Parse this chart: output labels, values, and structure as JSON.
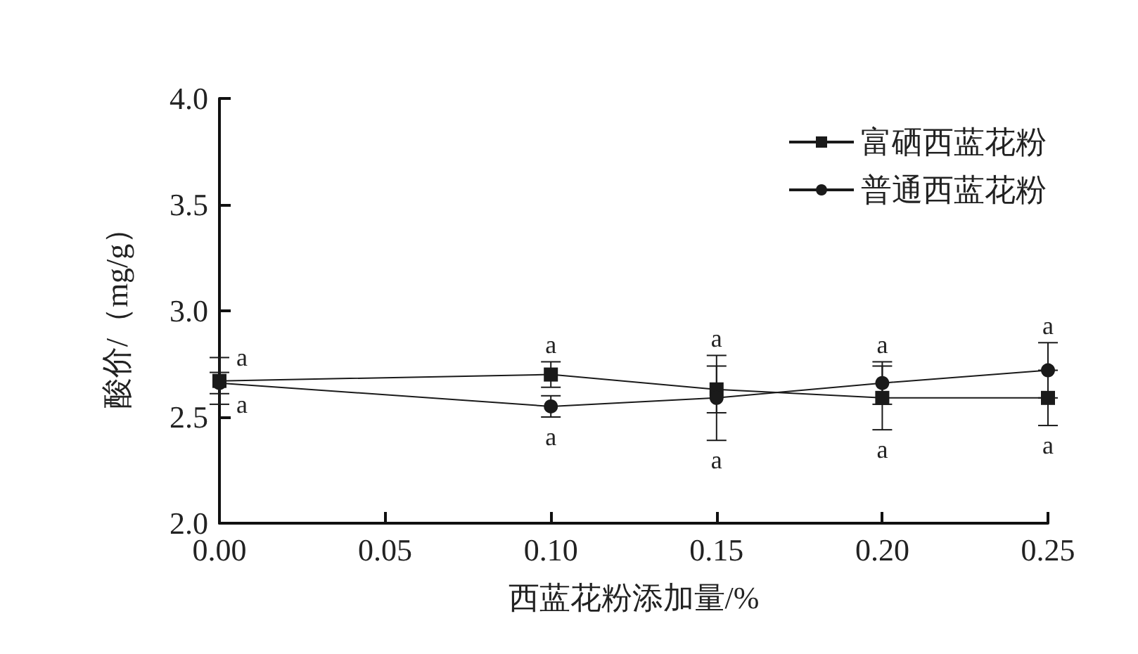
{
  "chart_data": {
    "type": "line",
    "xlabel": "西蓝花粉添加量/%",
    "ylabel": "酸价/（mg/g）",
    "x": [
      0.0,
      0.1,
      0.15,
      0.2,
      0.25
    ],
    "xlim": [
      0.0,
      0.25
    ],
    "xticks": [
      {
        "value": 0,
        "label": "0.00"
      },
      {
        "value": 0.05,
        "label": "0.05"
      },
      {
        "value": 0.1,
        "label": "0.10"
      },
      {
        "value": 0.15,
        "label": "0.15"
      },
      {
        "value": 0.2,
        "label": "0.20"
      },
      {
        "value": 0.25,
        "label": "0.25"
      }
    ],
    "ylim": [
      2.0,
      4.0
    ],
    "yticks": [
      {
        "value": 2,
        "label": "2.0"
      },
      {
        "value": 2.5,
        "label": "2.5"
      },
      {
        "value": 3,
        "label": "3.0"
      },
      {
        "value": 3.5,
        "label": "3.5"
      },
      {
        "value": 4,
        "label": "4.0"
      }
    ],
    "series": [
      {
        "name": "富硒西蓝花粉",
        "color": "#1a1a1a",
        "marker": "square",
        "values": [
          2.67,
          2.7,
          2.63,
          2.59,
          2.59
        ],
        "errors": [
          0.11,
          0.06,
          0.11,
          0.15,
          0.13
        ]
      },
      {
        "name": "普通西蓝花粉",
        "color": "#1a1a1a",
        "marker": "circle",
        "values": [
          2.66,
          2.55,
          2.59,
          2.66,
          2.72
        ],
        "errors": [
          0.05,
          0.05,
          0.2,
          0.1,
          0.13
        ]
      }
    ],
    "annotations": [
      "a",
      "a",
      "a",
      "a",
      "a",
      "a",
      "a",
      "a",
      "a",
      "a"
    ],
    "legend": "top right",
    "grid": false,
    "line_style": "solid"
  }
}
